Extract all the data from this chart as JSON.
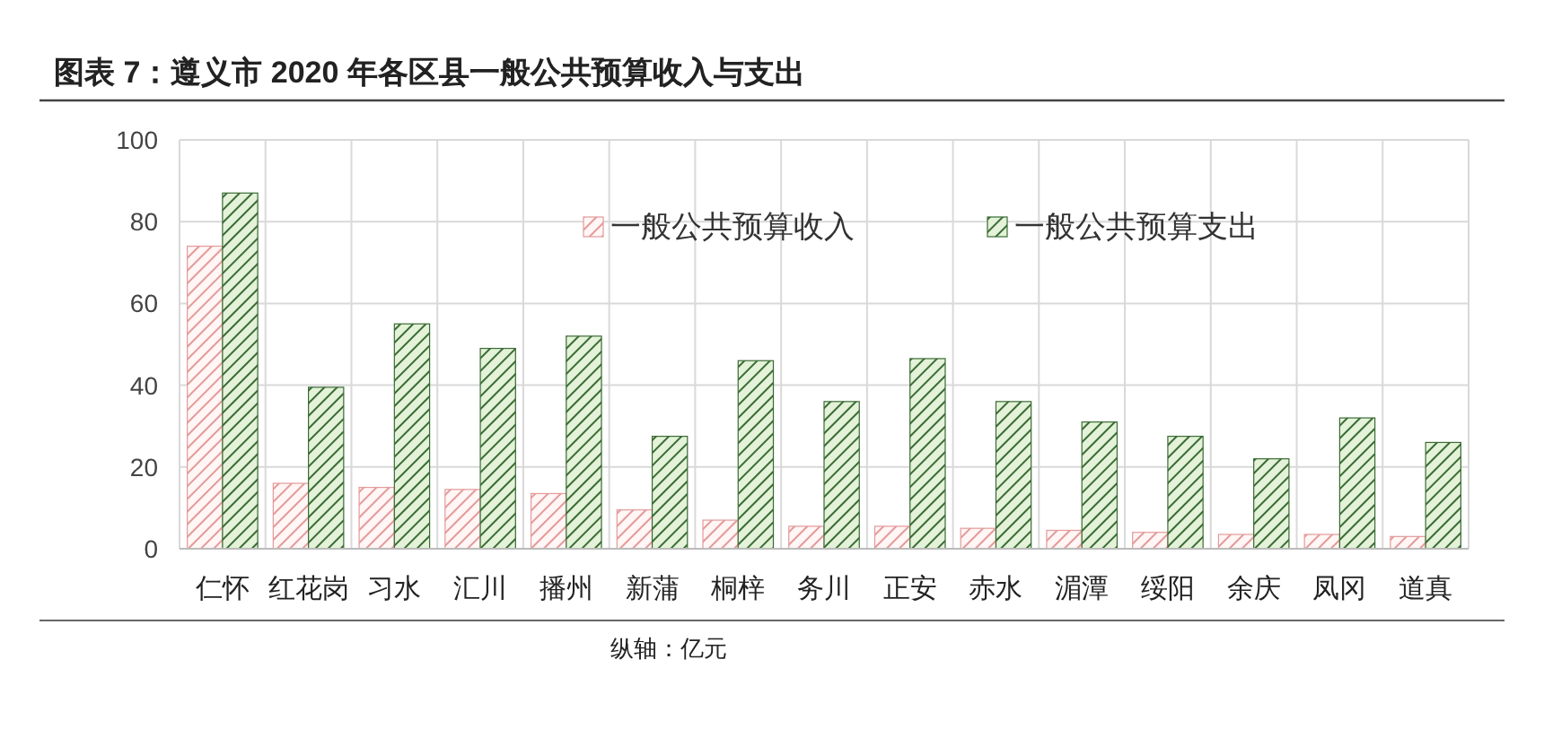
{
  "chart_data": {
    "type": "bar",
    "title": "图表 7：遵义市 2020 年各区县一般公共预算收入与支出",
    "categories": [
      "仁怀",
      "红花岗",
      "习水",
      "汇川",
      "播州",
      "新蒲",
      "桐梓",
      "务川",
      "正安",
      "赤水",
      "湄潭",
      "绥阳",
      "余庆",
      "凤冈",
      "道真"
    ],
    "series": [
      {
        "name": "一般公共预算收入",
        "color": "#e39a9a",
        "values": [
          74,
          16,
          15,
          14.5,
          13.5,
          9.5,
          7,
          5.5,
          5.5,
          5,
          4.5,
          4,
          3.5,
          3.5,
          3
        ]
      },
      {
        "name": "一般公共预算支出",
        "color": "#3a6b34",
        "values": [
          87,
          39.5,
          55,
          49,
          52,
          27.5,
          46,
          36,
          46.5,
          36,
          31,
          27.5,
          22,
          32,
          26
        ]
      }
    ],
    "ylim": [
      0,
      100
    ],
    "yticks": [
      0,
      20,
      40,
      60,
      80,
      100
    ],
    "grid": true,
    "legend": "top",
    "annotations": [
      "纵轴：亿元"
    ]
  }
}
